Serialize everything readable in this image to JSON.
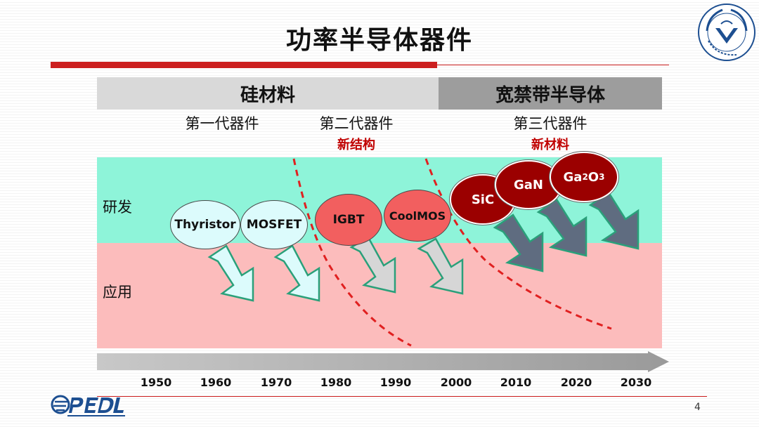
{
  "title": "功率半导体器件",
  "bands": {
    "silicon": "硅材料",
    "wide_bandgap": "宽禁带半导体"
  },
  "generations": [
    {
      "label": "第一代器件",
      "sub": ""
    },
    {
      "label": "第二代器件",
      "sub": "新结构"
    },
    {
      "label": "第三代器件",
      "sub": "新材料"
    }
  ],
  "rows": {
    "rd": "研发",
    "app": "应用"
  },
  "devices": {
    "thyristor": "Thyristor",
    "mosfet": "MOSFET",
    "igbt": "IGBT",
    "coolmos": "CoolMOS",
    "sic": "SiC",
    "gan": "GaN",
    "ga2o3": {
      "base": "Ga",
      "sub1": "2",
      "mid": "O",
      "sub2": "3"
    }
  },
  "years": [
    "1950",
    "1960",
    "1970",
    "1980",
    "1990",
    "2000",
    "2010",
    "2020",
    "2030"
  ],
  "page_number": "4",
  "colors": {
    "title_bar_red": "#cc1f1f",
    "rd_region": "#8ef4d9",
    "app_region": "#fcbcbc",
    "dashed_divider": "#e02020",
    "gen3_bubble": "#9b0000",
    "gen2_bubble": "#f25f5f",
    "gen1_bubble": "#dcfbfc"
  }
}
